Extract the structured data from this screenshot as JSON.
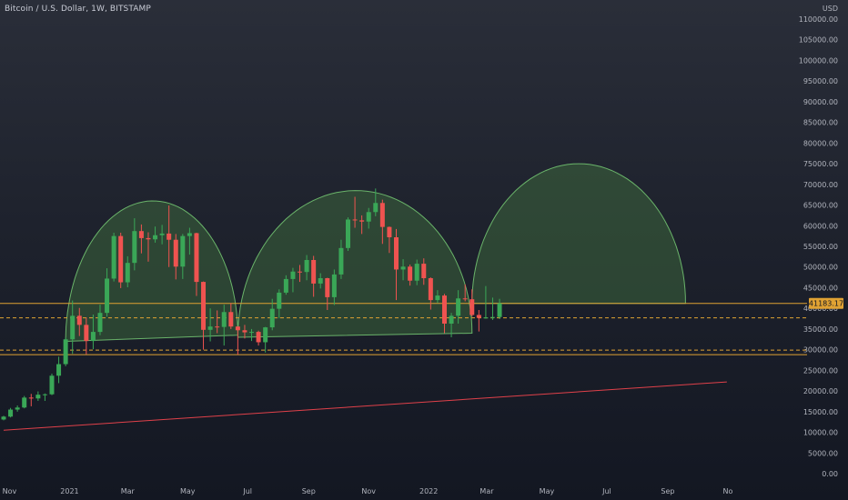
{
  "header": {
    "title": "Bitcoin / U.S. Dollar, 1W, BITSTAMP"
  },
  "colors": {
    "up": "#26a69a",
    "up_fill": "#3aa757",
    "down": "#ef5350",
    "dome_fill": "rgba(76,140,70,0.35)",
    "dome_stroke": "#6ab46a",
    "support_line": "#e0a233",
    "trend_line": "#e0414a",
    "text": "#b2b5be"
  },
  "chart_data": {
    "type": "candlestick",
    "yaxis": {
      "unit": "USD",
      "tick_labels": [
        "0.00",
        "5000.00",
        "10000.00",
        "15000.00",
        "20000.00",
        "25000.00",
        "30000.00",
        "35000.00",
        "40000.00",
        "45000.00",
        "50000.00",
        "55000.00",
        "60000.00",
        "65000.00",
        "70000.00",
        "75000.00",
        "80000.00",
        "85000.00",
        "90000.00",
        "95000.00",
        "100000.00",
        "105000.00",
        "110000.00"
      ],
      "ylim": [
        0,
        115000
      ]
    },
    "xaxis": {
      "tick_labels": [
        "Nov",
        "2021",
        "Mar",
        "May",
        "Jul",
        "Sep",
        "Nov",
        "2022",
        "Mar",
        "May",
        "Jul",
        "Sep",
        "No"
      ]
    },
    "current_price_label": "41183.17",
    "horizontal_levels": [
      {
        "price": 41200,
        "style": "solid"
      },
      {
        "price": 37700,
        "style": "dashed"
      },
      {
        "price": 29900,
        "style": "dashed"
      },
      {
        "price": 28800,
        "style": "solid"
      }
    ],
    "trendline": {
      "start": {
        "date": "2020-10-26",
        "price": 10500
      },
      "end": {
        "date": "2022-10-31",
        "price": 22200
      }
    },
    "domes": [
      {
        "start": {
          "date": "2020-12-28",
          "price": 32000
        },
        "end": {
          "date": "2021-06-21",
          "price": 33500
        },
        "peak": 66000
      },
      {
        "start": {
          "date": "2021-06-21",
          "price": 33000
        },
        "end": {
          "date": "2022-02-14",
          "price": 34000
        },
        "peak": 68500
      },
      {
        "start": {
          "date": "2022-02-14",
          "price": 41200
        },
        "end": {
          "date": "2022-09-19",
          "price": 41200
        },
        "peak": 75000
      }
    ],
    "series": [
      {
        "ohlc": [
          [
            "2020-10-26",
            13100,
            14000,
            12900,
            13800
          ],
          [
            "2020-11-02",
            13800,
            15900,
            13600,
            15500
          ],
          [
            "2020-11-09",
            15500,
            16500,
            15000,
            16000
          ],
          [
            "2020-11-16",
            16000,
            18800,
            15800,
            18400
          ],
          [
            "2020-11-23",
            18400,
            19300,
            16300,
            18200
          ],
          [
            "2020-11-30",
            18200,
            19900,
            17600,
            19100
          ],
          [
            "2020-12-07",
            19100,
            19400,
            17600,
            19200
          ],
          [
            "2020-12-14",
            19200,
            24200,
            19000,
            23700
          ],
          [
            "2020-12-21",
            23700,
            28300,
            21900,
            26500
          ],
          [
            "2020-12-28",
            26500,
            33000,
            26000,
            32500
          ],
          [
            "2021-01-04",
            32500,
            41900,
            29000,
            38200
          ],
          [
            "2021-01-11",
            38200,
            40100,
            33300,
            36000
          ],
          [
            "2021-01-18",
            36000,
            37800,
            28900,
            32100
          ],
          [
            "2021-01-25",
            32100,
            38500,
            30100,
            34300
          ],
          [
            "2021-02-01",
            34300,
            40900,
            33500,
            38900
          ],
          [
            "2021-02-08",
            38900,
            49700,
            38000,
            47200
          ],
          [
            "2021-02-15",
            47200,
            58300,
            46500,
            57500
          ],
          [
            "2021-02-22",
            57500,
            58300,
            44900,
            46300
          ],
          [
            "2021-03-01",
            46300,
            52600,
            45100,
            51000
          ],
          [
            "2021-03-08",
            51000,
            61800,
            49200,
            58700
          ],
          [
            "2021-03-15",
            58700,
            60300,
            53300,
            57000
          ],
          [
            "2021-03-22",
            57000,
            58400,
            51300,
            56700
          ],
          [
            "2021-03-29",
            56700,
            59800,
            55900,
            57700
          ],
          [
            "2021-04-05",
            57700,
            60200,
            55500,
            58100
          ],
          [
            "2021-04-12",
            58100,
            64900,
            50000,
            56600
          ],
          [
            "2021-04-19",
            56600,
            58000,
            47000,
            50100
          ],
          [
            "2021-04-26",
            50100,
            58000,
            47100,
            57500
          ],
          [
            "2021-05-03",
            57500,
            59500,
            53000,
            58200
          ],
          [
            "2021-05-10",
            58200,
            58300,
            43000,
            46400
          ],
          [
            "2021-05-17",
            46400,
            46500,
            30000,
            34800
          ],
          [
            "2021-05-24",
            34800,
            40000,
            32000,
            35600
          ],
          [
            "2021-05-31",
            35600,
            39500,
            34000,
            35500
          ],
          [
            "2021-06-07",
            35500,
            40900,
            31000,
            39100
          ],
          [
            "2021-06-14",
            39100,
            41300,
            35000,
            35600
          ],
          [
            "2021-06-21",
            35600,
            35700,
            28800,
            34700
          ],
          [
            "2021-06-28",
            34700,
            36000,
            32700,
            34200
          ],
          [
            "2021-07-05",
            34200,
            35000,
            32100,
            34300
          ],
          [
            "2021-07-12",
            34300,
            34600,
            31000,
            31800
          ],
          [
            "2021-07-19",
            31800,
            35500,
            29300,
            35400
          ],
          [
            "2021-07-26",
            35400,
            42300,
            34700,
            39900
          ],
          [
            "2021-08-02",
            39900,
            44600,
            37600,
            43800
          ],
          [
            "2021-08-09",
            43800,
            48000,
            43300,
            47100
          ],
          [
            "2021-08-16",
            47100,
            49800,
            43900,
            48900
          ],
          [
            "2021-08-23",
            48900,
            50500,
            46400,
            48800
          ],
          [
            "2021-08-30",
            48800,
            52900,
            46800,
            51700
          ],
          [
            "2021-09-06",
            51700,
            52700,
            42800,
            46000
          ],
          [
            "2021-09-13",
            46000,
            48500,
            44800,
            47300
          ],
          [
            "2021-09-20",
            47300,
            47400,
            39600,
            42700
          ],
          [
            "2021-09-27",
            42700,
            49400,
            40800,
            48200
          ],
          [
            "2021-10-04",
            48200,
            56600,
            47100,
            54600
          ],
          [
            "2021-10-11",
            54600,
            62000,
            53900,
            61500
          ],
          [
            "2021-10-18",
            61500,
            67000,
            59500,
            61300
          ],
          [
            "2021-10-25",
            61300,
            62500,
            58000,
            61000
          ],
          [
            "2021-11-01",
            61000,
            64300,
            59300,
            63300
          ],
          [
            "2021-11-08",
            63300,
            69000,
            62300,
            65500
          ],
          [
            "2021-11-15",
            65500,
            66300,
            55600,
            59700
          ],
          [
            "2021-11-22",
            59700,
            59800,
            53400,
            57200
          ],
          [
            "2021-11-29",
            57200,
            59200,
            42000,
            49400
          ],
          [
            "2021-12-06",
            49400,
            51900,
            46800,
            50100
          ],
          [
            "2021-12-13",
            50100,
            50600,
            45500,
            46700
          ],
          [
            "2021-12-20",
            46700,
            51800,
            45600,
            50800
          ],
          [
            "2021-12-27",
            50800,
            52100,
            45700,
            47300
          ],
          [
            "2022-01-03",
            47300,
            47500,
            39700,
            42000
          ],
          [
            "2022-01-10",
            42000,
            44400,
            41300,
            43100
          ],
          [
            "2022-01-17",
            43100,
            43500,
            34000,
            36300
          ],
          [
            "2022-01-24",
            36300,
            38900,
            33000,
            38200
          ],
          [
            "2022-01-31",
            38200,
            44400,
            36300,
            42400
          ],
          [
            "2022-02-07",
            42400,
            45800,
            41700,
            42200
          ],
          [
            "2022-02-14",
            42200,
            44600,
            38000,
            38400
          ],
          [
            "2022-02-21",
            38400,
            39600,
            34400,
            37700
          ],
          [
            "2022-02-28",
            37700,
            45400,
            37500,
            37800
          ],
          [
            "2022-03-07",
            37800,
            42600,
            37200,
            37900
          ],
          [
            "2022-03-14",
            37900,
            42300,
            37400,
            41200
          ]
        ]
      }
    ]
  }
}
